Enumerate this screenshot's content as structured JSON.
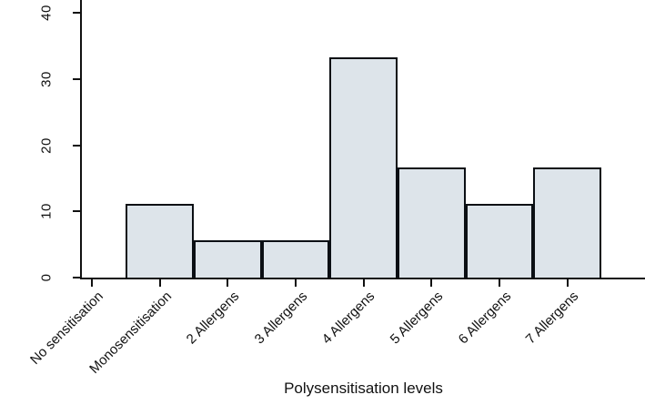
{
  "chart_data": {
    "type": "bar",
    "title": "",
    "xlabel": "Polysensitisation levels",
    "ylabel": "",
    "categories": [
      "No sensitisation",
      "Monosensitisation",
      "2 Allergens",
      "3 Allergens",
      "4 Allergens",
      "5 Allergens",
      "6 Allergens",
      "7 Allergens"
    ],
    "values": [
      0,
      11.1,
      5.6,
      5.6,
      33.3,
      16.7,
      11.1,
      16.7
    ],
    "yticks": [
      0,
      10,
      20,
      30,
      40
    ],
    "ylim": [
      0,
      40
    ],
    "grid": false,
    "legend": "none",
    "colors": {
      "bar_fill": "#dde4ea",
      "bar_border": "#0b0f14",
      "axis": "#111111",
      "text": "#111111",
      "background": "#ffffff"
    }
  }
}
